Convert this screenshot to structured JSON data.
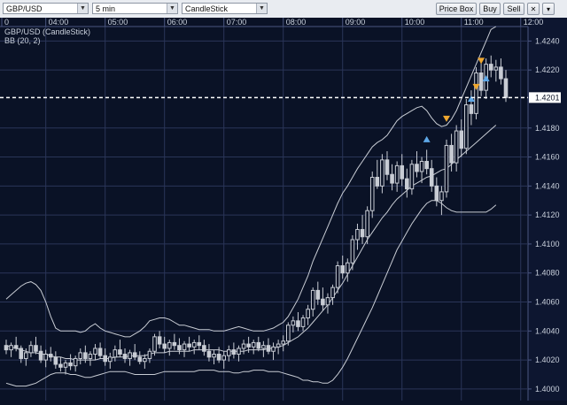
{
  "toolbar": {
    "symbol": "GBP/USD",
    "interval": "5 min",
    "chart_style": "CandleStick",
    "price_box_label": "Price Box",
    "buy_label": "Buy",
    "sell_label": "Sell"
  },
  "legend": {
    "instrument": "GBP/USD (CandleStick)",
    "indicator": "BB (20, 2)"
  },
  "current_price": "1.4201",
  "colors": {
    "background": "#0a1226",
    "grid": "#2a3558",
    "candle": "#c8ccd4",
    "bollinger": "#c8ccd4",
    "price_line": "#ffffff",
    "axis_panel": "#0d1630",
    "buy_marker": "#5ea8e8",
    "sell_marker": "#f0a830"
  },
  "chart_data": {
    "type": "candlestick",
    "time_ticks": [
      "0",
      "04:00",
      "05:00",
      "06:00",
      "07:00",
      "08:00",
      "09:00",
      "10:00",
      "11:00",
      "12:00"
    ],
    "price_ticks": [
      "1.4240",
      "1.4220",
      "1.4180",
      "1.4160",
      "1.4140",
      "1.4120",
      "1.4100",
      "1.4080",
      "1.4060",
      "1.4040",
      "1.4020",
      "1.4000"
    ],
    "ylim": [
      1.3992,
      1.425
    ],
    "candles": [
      [
        1.403,
        1.4034,
        1.4024,
        1.4027
      ],
      [
        1.4027,
        1.4032,
        1.4022,
        1.403
      ],
      [
        1.403,
        1.4036,
        1.4026,
        1.4028
      ],
      [
        1.4028,
        1.403,
        1.4018,
        1.4021
      ],
      [
        1.4021,
        1.4028,
        1.4016,
        1.4025
      ],
      [
        1.4025,
        1.4033,
        1.4022,
        1.403
      ],
      [
        1.403,
        1.4036,
        1.4024,
        1.4026
      ],
      [
        1.4026,
        1.403,
        1.4018,
        1.402
      ],
      [
        1.402,
        1.4027,
        1.4015,
        1.4024
      ],
      [
        1.4024,
        1.4029,
        1.4019,
        1.4022
      ],
      [
        1.4022,
        1.4026,
        1.4014,
        1.4017
      ],
      [
        1.4017,
        1.4022,
        1.4012,
        1.4015
      ],
      [
        1.4015,
        1.402,
        1.401,
        1.4018
      ],
      [
        1.4018,
        1.4024,
        1.4013,
        1.4016
      ],
      [
        1.4016,
        1.4023,
        1.4012,
        1.4021
      ],
      [
        1.4021,
        1.4028,
        1.4017,
        1.4025
      ],
      [
        1.4025,
        1.403,
        1.4018,
        1.4021
      ],
      [
        1.4021,
        1.4026,
        1.4016,
        1.4024
      ],
      [
        1.4024,
        1.4031,
        1.402,
        1.4028
      ],
      [
        1.4028,
        1.4032,
        1.4021,
        1.4023
      ],
      [
        1.4023,
        1.4028,
        1.4016,
        1.4019
      ],
      [
        1.4019,
        1.4025,
        1.4014,
        1.4022
      ],
      [
        1.4022,
        1.403,
        1.4019,
        1.4027
      ],
      [
        1.4027,
        1.4034,
        1.4022,
        1.4024
      ],
      [
        1.4024,
        1.4028,
        1.4018,
        1.4021
      ],
      [
        1.4021,
        1.4027,
        1.4016,
        1.4025
      ],
      [
        1.4025,
        1.4031,
        1.402,
        1.4022
      ],
      [
        1.4022,
        1.4026,
        1.4017,
        1.4019
      ],
      [
        1.4019,
        1.4024,
        1.4014,
        1.4021
      ],
      [
        1.4021,
        1.4028,
        1.4018,
        1.4026
      ],
      [
        1.4026,
        1.4038,
        1.4023,
        1.4036
      ],
      [
        1.4036,
        1.404,
        1.4028,
        1.4031
      ],
      [
        1.4031,
        1.4036,
        1.4025,
        1.4028
      ],
      [
        1.4028,
        1.4034,
        1.4023,
        1.4032
      ],
      [
        1.4032,
        1.4038,
        1.4027,
        1.403
      ],
      [
        1.403,
        1.4035,
        1.4024,
        1.4027
      ],
      [
        1.4027,
        1.4033,
        1.4022,
        1.4031
      ],
      [
        1.4031,
        1.4036,
        1.4026,
        1.4029
      ],
      [
        1.4029,
        1.4034,
        1.4024,
        1.4032
      ],
      [
        1.4032,
        1.4037,
        1.4027,
        1.403
      ],
      [
        1.403,
        1.4034,
        1.4023,
        1.4026
      ],
      [
        1.4026,
        1.4031,
        1.4019,
        1.4022
      ],
      [
        1.4022,
        1.4027,
        1.4017,
        1.4024
      ],
      [
        1.4024,
        1.4029,
        1.4018,
        1.402
      ],
      [
        1.402,
        1.4026,
        1.4014,
        1.4023
      ],
      [
        1.4023,
        1.403,
        1.4019,
        1.4027
      ],
      [
        1.4027,
        1.4032,
        1.4021,
        1.4024
      ],
      [
        1.4024,
        1.403,
        1.4019,
        1.4028
      ],
      [
        1.4028,
        1.4034,
        1.4024,
        1.4031
      ],
      [
        1.4031,
        1.4036,
        1.4025,
        1.4029
      ],
      [
        1.4029,
        1.4034,
        1.4024,
        1.4032
      ],
      [
        1.4032,
        1.4036,
        1.4026,
        1.4028
      ],
      [
        1.4028,
        1.4033,
        1.4022,
        1.403
      ],
      [
        1.403,
        1.4035,
        1.4024,
        1.4026
      ],
      [
        1.4026,
        1.4032,
        1.402,
        1.4029
      ],
      [
        1.4029,
        1.4034,
        1.4024,
        1.4031
      ],
      [
        1.4031,
        1.4037,
        1.4026,
        1.4033
      ],
      [
        1.4033,
        1.4046,
        1.403,
        1.4044
      ],
      [
        1.4044,
        1.405,
        1.4039,
        1.4047
      ],
      [
        1.4047,
        1.4053,
        1.404,
        1.4043
      ],
      [
        1.4043,
        1.4051,
        1.404,
        1.4049
      ],
      [
        1.4049,
        1.4058,
        1.4044,
        1.4055
      ],
      [
        1.4055,
        1.407,
        1.405,
        1.4068
      ],
      [
        1.4068,
        1.4074,
        1.4058,
        1.4062
      ],
      [
        1.4062,
        1.407,
        1.4054,
        1.4058
      ],
      [
        1.4058,
        1.4066,
        1.4052,
        1.4063
      ],
      [
        1.4063,
        1.4072,
        1.4058,
        1.407
      ],
      [
        1.407,
        1.4088,
        1.4066,
        1.4085
      ],
      [
        1.4085,
        1.4092,
        1.4076,
        1.408
      ],
      [
        1.408,
        1.409,
        1.4074,
        1.4087
      ],
      [
        1.4087,
        1.4106,
        1.4082,
        1.4103
      ],
      [
        1.4103,
        1.4114,
        1.4096,
        1.411
      ],
      [
        1.411,
        1.412,
        1.41,
        1.4105
      ],
      [
        1.4105,
        1.4126,
        1.41,
        1.4123
      ],
      [
        1.4123,
        1.415,
        1.4118,
        1.4146
      ],
      [
        1.4146,
        1.4158,
        1.4138,
        1.414
      ],
      [
        1.414,
        1.4162,
        1.4135,
        1.4158
      ],
      [
        1.4158,
        1.4164,
        1.4144,
        1.4148
      ],
      [
        1.4148,
        1.4155,
        1.4137,
        1.4142
      ],
      [
        1.4142,
        1.4157,
        1.4136,
        1.4154
      ],
      [
        1.4154,
        1.4162,
        1.414,
        1.4145
      ],
      [
        1.4145,
        1.4152,
        1.4132,
        1.4138
      ],
      [
        1.4138,
        1.4158,
        1.4134,
        1.4155
      ],
      [
        1.4155,
        1.4164,
        1.4146,
        1.415
      ],
      [
        1.415,
        1.416,
        1.4142,
        1.4157
      ],
      [
        1.4157,
        1.4165,
        1.4148,
        1.4152
      ],
      [
        1.4152,
        1.4158,
        1.4136,
        1.414
      ],
      [
        1.414,
        1.4146,
        1.4126,
        1.413
      ],
      [
        1.413,
        1.414,
        1.412,
        1.4136
      ],
      [
        1.4136,
        1.4172,
        1.4132,
        1.4168
      ],
      [
        1.4168,
        1.4176,
        1.415,
        1.4156
      ],
      [
        1.4156,
        1.4182,
        1.415,
        1.4178
      ],
      [
        1.4178,
        1.4186,
        1.416,
        1.4166
      ],
      [
        1.4166,
        1.42,
        1.4162,
        1.4196
      ],
      [
        1.4196,
        1.4206,
        1.4182,
        1.419
      ],
      [
        1.419,
        1.4222,
        1.4186,
        1.4218
      ],
      [
        1.4218,
        1.4226,
        1.4202,
        1.4206
      ],
      [
        1.4206,
        1.4228,
        1.42,
        1.4224
      ],
      [
        1.4224,
        1.423,
        1.4215,
        1.422
      ],
      [
        1.422,
        1.4227,
        1.4212,
        1.4222
      ],
      [
        1.4222,
        1.4228,
        1.421,
        1.4214
      ],
      [
        1.4214,
        1.422,
        1.4198,
        1.4201
      ]
    ],
    "bollinger": {
      "upper": [
        1.4062,
        1.4065,
        1.4068,
        1.4071,
        1.4073,
        1.4074,
        1.4072,
        1.4068,
        1.406,
        1.405,
        1.4042,
        1.404,
        1.404,
        1.404,
        1.404,
        1.4039,
        1.404,
        1.4043,
        1.4045,
        1.4042,
        1.404,
        1.4039,
        1.4038,
        1.4037,
        1.4036,
        1.4036,
        1.4038,
        1.404,
        1.4043,
        1.4047,
        1.4048,
        1.4049,
        1.4049,
        1.4048,
        1.4046,
        1.4044,
        1.4044,
        1.4043,
        1.4042,
        1.4041,
        1.4041,
        1.4041,
        1.404,
        1.404,
        1.404,
        1.4041,
        1.4042,
        1.4043,
        1.4042,
        1.4041,
        1.404,
        1.404,
        1.404,
        1.4041,
        1.4042,
        1.4044,
        1.4046,
        1.405,
        1.4056,
        1.4062,
        1.407,
        1.4078,
        1.4088,
        1.4096,
        1.4104,
        1.4112,
        1.412,
        1.4128,
        1.4135,
        1.414,
        1.4146,
        1.4152,
        1.4157,
        1.4162,
        1.4167,
        1.417,
        1.4172,
        1.4175,
        1.418,
        1.4185,
        1.4188,
        1.419,
        1.4192,
        1.4194,
        1.4195,
        1.4192,
        1.4187,
        1.4183,
        1.4181,
        1.4182,
        1.4186,
        1.4192,
        1.42,
        1.4208,
        1.4216,
        1.4224,
        1.4232,
        1.424,
        1.4248,
        1.425
      ],
      "middle": [
        1.403,
        1.4029,
        1.4028,
        1.4027,
        1.4026,
        1.4025,
        1.4025,
        1.4024,
        1.4024,
        1.4023,
        1.4022,
        1.4022,
        1.4021,
        1.4021,
        1.402,
        1.402,
        1.402,
        1.402,
        1.402,
        1.4021,
        1.4021,
        1.4021,
        1.4022,
        1.4022,
        1.4022,
        1.4023,
        1.4023,
        1.4023,
        1.4023,
        1.4024,
        1.4025,
        1.4025,
        1.4025,
        1.4026,
        1.4026,
        1.4026,
        1.4026,
        1.4026,
        1.4027,
        1.4027,
        1.4027,
        1.4027,
        1.4027,
        1.4027,
        1.4026,
        1.4026,
        1.4026,
        1.4026,
        1.4026,
        1.4027,
        1.4027,
        1.4027,
        1.4027,
        1.4028,
        1.4028,
        1.4029,
        1.403,
        1.4032,
        1.4034,
        1.4036,
        1.4039,
        1.4042,
        1.4046,
        1.405,
        1.4054,
        1.4058,
        1.4063,
        1.4068,
        1.4073,
        1.4079,
        1.4085,
        1.4091,
        1.4097,
        1.4103,
        1.4108,
        1.4113,
        1.4118,
        1.4122,
        1.4127,
        1.4131,
        1.4134,
        1.4137,
        1.414,
        1.4142,
        1.4144,
        1.4146,
        1.4147,
        1.4149,
        1.4151,
        1.4152,
        1.4155,
        1.4158,
        1.4161,
        1.4164,
        1.4167,
        1.417,
        1.4173,
        1.4176,
        1.4179,
        1.4182
      ],
      "lower": [
        1.4004,
        1.4003,
        1.4002,
        1.4002,
        1.4002,
        1.4003,
        1.4004,
        1.4006,
        1.4008,
        1.401,
        1.4011,
        1.4011,
        1.4011,
        1.401,
        1.401,
        1.4009,
        1.4008,
        1.4008,
        1.4009,
        1.401,
        1.4011,
        1.4012,
        1.4012,
        1.4012,
        1.4012,
        1.4011,
        1.401,
        1.401,
        1.401,
        1.401,
        1.401,
        1.4011,
        1.4012,
        1.4012,
        1.4012,
        1.4012,
        1.4012,
        1.4012,
        1.4012,
        1.4013,
        1.4013,
        1.4013,
        1.4013,
        1.4012,
        1.4012,
        1.4012,
        1.4011,
        1.4011,
        1.4012,
        1.4012,
        1.4013,
        1.4013,
        1.4013,
        1.4012,
        1.4012,
        1.4012,
        1.4011,
        1.401,
        1.4009,
        1.4008,
        1.4006,
        1.4006,
        1.4005,
        1.4005,
        1.4004,
        1.4004,
        1.4006,
        1.401,
        1.4015,
        1.4021,
        1.4028,
        1.4035,
        1.4042,
        1.4049,
        1.4056,
        1.4064,
        1.4072,
        1.408,
        1.4088,
        1.4096,
        1.4102,
        1.4108,
        1.4114,
        1.4119,
        1.4124,
        1.4128,
        1.413,
        1.413,
        1.4128,
        1.4125,
        1.4123,
        1.4122,
        1.4122,
        1.4122,
        1.4122,
        1.4122,
        1.4122,
        1.4122,
        1.4124,
        1.4127
      ]
    },
    "markers": [
      {
        "type": "buy",
        "index": 85,
        "price": 1.4172
      },
      {
        "type": "sell",
        "index": 89,
        "price": 1.4186
      },
      {
        "type": "buy",
        "index": 94,
        "price": 1.42
      },
      {
        "type": "sell",
        "index": 95,
        "price": 1.4208
      },
      {
        "type": "sell",
        "index": 96,
        "price": 1.4226
      },
      {
        "type": "buy",
        "index": 97,
        "price": 1.4214
      }
    ],
    "price_line": 1.4201
  }
}
